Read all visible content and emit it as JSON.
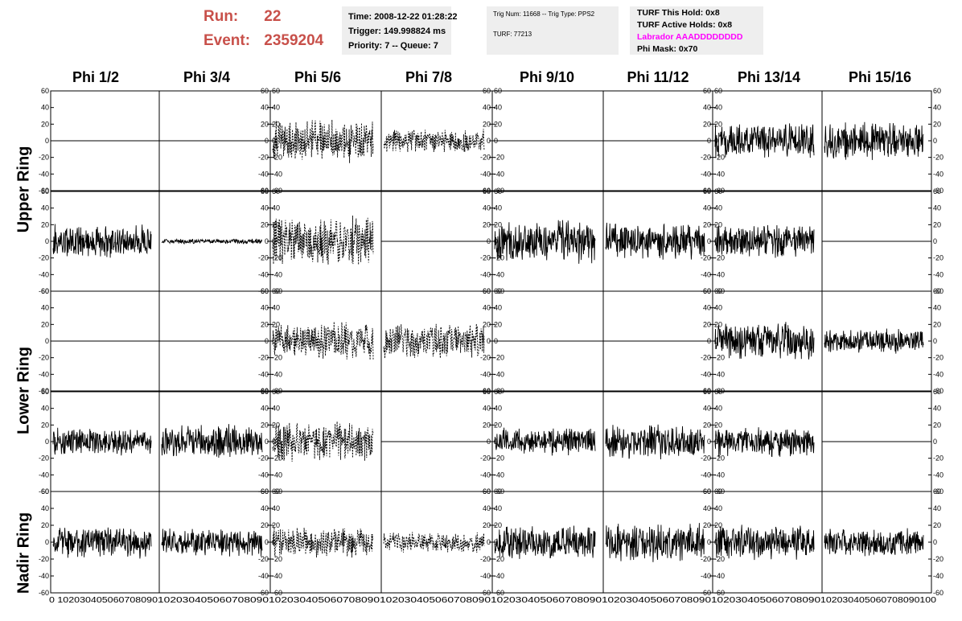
{
  "run_panel": {
    "run_label": "Run:",
    "run_value": "22",
    "event_label": "Event:",
    "event_value": "2359204",
    "color": "#c8504a"
  },
  "time_box": {
    "time": "Time: 2008-12-22 01:28:22",
    "trigger": "Trigger: 149.998824 ms",
    "priority": "Priority: 7 -- Queue: 7"
  },
  "trig_box": {
    "trig": "Trig Num: 11668 -- Trig Type: PPS2",
    "turf": "TURF: 77213"
  },
  "turf_box": {
    "this_hold": "TURF This Hold: 0x8",
    "active_holds": "TURF Active Holds: 0x8",
    "labrador": "Labrador AAADDDDDDDD",
    "labrador_color": "#ff00ff",
    "phi_mask": "Phi Mask: 0x70"
  },
  "chart_data": {
    "type": "line",
    "columns": [
      "Phi 1/2",
      "Phi 3/4",
      "Phi 5/6",
      "Phi 7/8",
      "Phi 9/10",
      "Phi 11/12",
      "Phi 13/14",
      "Phi 15/16"
    ],
    "row_groups": [
      "Upper Ring",
      "Lower Ring",
      "Nadir Ring"
    ],
    "ylim": [
      -60,
      60
    ],
    "xlim": [
      0,
      100
    ],
    "y_ticks": [
      60,
      40,
      20,
      0,
      -20,
      -40,
      -60
    ],
    "x_ticks": [
      "0",
      "10",
      "20",
      "30",
      "40",
      "50",
      "60",
      "70",
      "80",
      "90",
      "100"
    ],
    "x_tick_text": [
      "0 102030405060708090",
      "102030405060708090",
      "102030405060708090",
      "102030405060708090",
      "102030405060708090",
      "102030405060708090",
      "102030405060708090",
      "102030405060708090100"
    ],
    "grid": false,
    "panels": [
      [
        {
          "amp": 0,
          "style": "solid"
        },
        {
          "amp": 0,
          "style": "solid"
        },
        {
          "amp": 25,
          "style": "dashed"
        },
        {
          "amp": 14,
          "style": "dashed"
        },
        {
          "amp": 0,
          "style": "solid"
        },
        {
          "amp": 0,
          "style": "solid"
        },
        {
          "amp": 20,
          "style": "solid"
        },
        {
          "amp": 22,
          "style": "solid"
        }
      ],
      [
        {
          "amp": 20,
          "style": "solid"
        },
        {
          "amp": 3,
          "style": "solid"
        },
        {
          "amp": 30,
          "style": "dashed"
        },
        {
          "amp": 0,
          "style": "solid"
        },
        {
          "amp": 25,
          "style": "solid"
        },
        {
          "amp": 22,
          "style": "solid"
        },
        {
          "amp": 20,
          "style": "solid"
        },
        {
          "amp": 0,
          "style": "solid"
        }
      ],
      [
        {
          "amp": 0,
          "style": "solid"
        },
        {
          "amp": 0,
          "style": "solid"
        },
        {
          "amp": 22,
          "style": "dashed"
        },
        {
          "amp": 22,
          "style": "dashed"
        },
        {
          "amp": 0,
          "style": "solid"
        },
        {
          "amp": 0,
          "style": "solid"
        },
        {
          "amp": 22,
          "style": "solid"
        },
        {
          "amp": 14,
          "style": "solid"
        }
      ],
      [
        {
          "amp": 16,
          "style": "solid"
        },
        {
          "amp": 20,
          "style": "solid"
        },
        {
          "amp": 25,
          "style": "dashed"
        },
        {
          "amp": 0,
          "style": "solid"
        },
        {
          "amp": 16,
          "style": "solid"
        },
        {
          "amp": 20,
          "style": "solid"
        },
        {
          "amp": 18,
          "style": "solid"
        },
        {
          "amp": 0,
          "style": "solid"
        }
      ],
      [
        {
          "amp": 18,
          "style": "solid"
        },
        {
          "amp": 16,
          "style": "solid"
        },
        {
          "amp": 18,
          "style": "dashed"
        },
        {
          "amp": 12,
          "style": "dashed"
        },
        {
          "amp": 20,
          "style": "solid"
        },
        {
          "amp": 22,
          "style": "solid"
        },
        {
          "amp": 20,
          "style": "solid"
        },
        {
          "amp": 16,
          "style": "solid"
        }
      ]
    ]
  }
}
